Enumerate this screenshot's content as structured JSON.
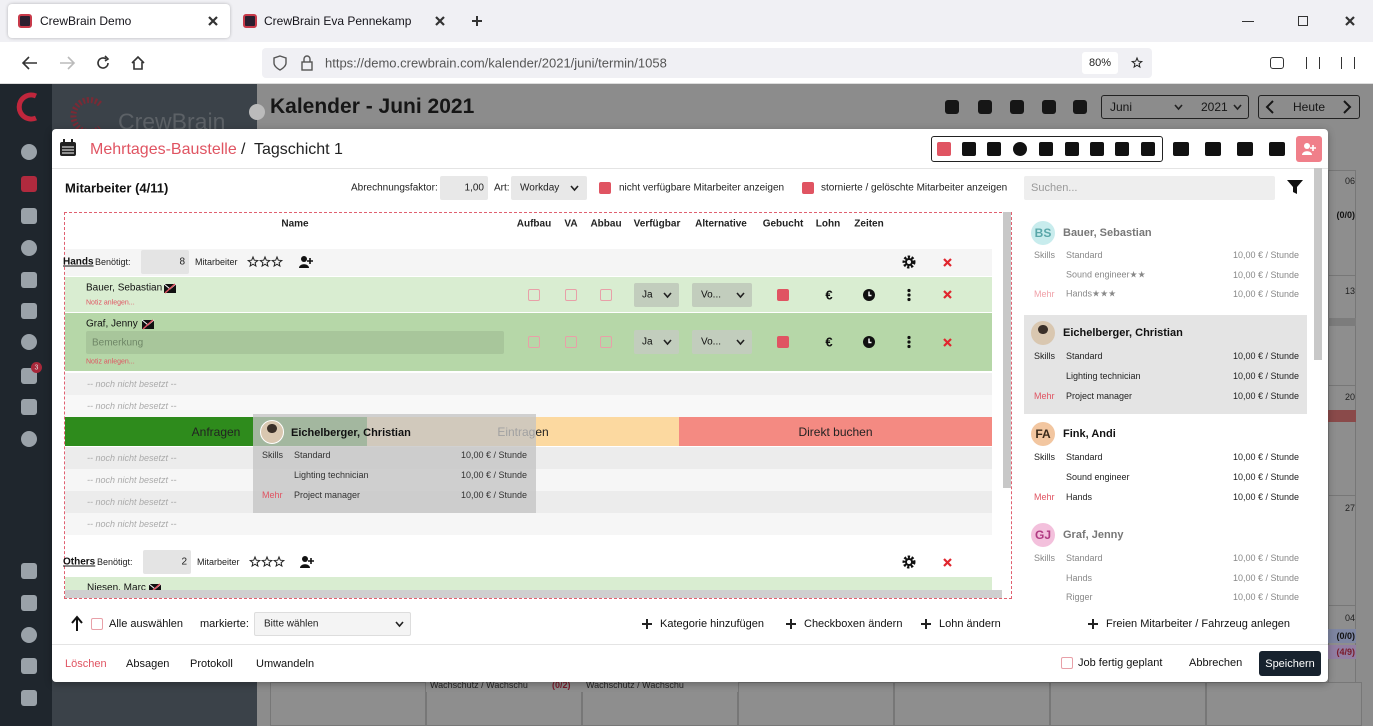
{
  "browser": {
    "tabs": [
      "CrewBrain Demo",
      "CrewBrain Eva Pennekamp"
    ],
    "url": "https://demo.crewbrain.com/kalender/2021/juni/termin/1058",
    "zoom": "80%"
  },
  "sidebar": {
    "badge": "3"
  },
  "background": {
    "logo": "CrewBrain",
    "title": "Kalender - Juni 2021",
    "month": "Juni",
    "year": "2021",
    "today": "Heute",
    "days": [
      "06",
      "13",
      "20",
      "27",
      "04"
    ],
    "counts": [
      "(0/0)",
      "(0/0)",
      "(4/9)"
    ],
    "events": [
      {
        "name": "Wachschutz / Wachschu",
        "count": "(0/2)"
      },
      {
        "name": "Wachschutz / Wachschu"
      }
    ]
  },
  "modal": {
    "breadcrumb": {
      "parent": "Mehrtages-Baustelle",
      "separator": "/",
      "current": "Tagschicht 1"
    },
    "employees": "Mitarbeiter (4/11)",
    "factor": {
      "label": "Abrechnungsfaktor:",
      "value": "1,00"
    },
    "art": {
      "label": "Art:",
      "value": "Workday"
    },
    "filters": [
      "nicht verfügbare Mitarbeiter anzeigen",
      "stornierte / gelöschte Mitarbeiter anzeigen"
    ],
    "search": "Suchen...",
    "columns": [
      "Name",
      "Aufbau",
      "VA",
      "Abbau",
      "Verfügbar",
      "Alternative",
      "Gebucht",
      "Lohn",
      "Zeiten"
    ],
    "needed_label": "Benötigt:",
    "staff_label": "Mitarbeiter",
    "note_label": "Notiz anlegen...",
    "remark_placeholder": "Bemerkung",
    "empty_label": "-- noch nicht besetzt --",
    "categories": [
      {
        "name": "Hands",
        "needed": "8",
        "rows": [
          {
            "name": "Bauer, Sebastian",
            "available": "Ja",
            "alternative": "Vo...",
            "wage": "€"
          },
          {
            "name": "Graf, Jenny",
            "available": "Ja",
            "alternative": "Vo...",
            "wage": "€"
          }
        ]
      },
      {
        "name": "Others",
        "needed": "2",
        "rows": [
          {
            "name": "Niesen, Marc"
          }
        ]
      }
    ],
    "drop_zones": [
      "Anfragen",
      "Eintragen",
      "Direkt buchen"
    ],
    "skills_label": "Skills",
    "more_label": "Mehr",
    "staff": [
      {
        "initials": "BS",
        "name": "Bauer, Sebastian",
        "skills": [
          [
            "Standard",
            "10,00 € / Stunde"
          ],
          [
            "Sound engineer★★",
            "10,00 € / Stunde"
          ]
        ],
        "more": [
          [
            "Hands★★★",
            "10,00 € / Stunde"
          ]
        ]
      },
      {
        "name": "Eichelberger, Christian",
        "skills": [
          [
            "Standard",
            "10,00 € / Stunde"
          ],
          [
            "Lighting technician",
            "10,00 € / Stunde"
          ]
        ],
        "more": [
          [
            "Project manager",
            "10,00 € / Stunde"
          ]
        ]
      },
      {
        "initials": "FA",
        "name": "Fink, Andi",
        "skills": [
          [
            "Standard",
            "10,00 € / Stunde"
          ],
          [
            "Sound engineer",
            "10,00 € / Stunde"
          ]
        ],
        "more": [
          [
            "Hands",
            "10,00 € / Stunde"
          ]
        ]
      },
      {
        "initials": "GJ",
        "name": "Graf, Jenny",
        "skills": [
          [
            "Standard",
            "10,00 € / Stunde"
          ],
          [
            "Hands",
            "10,00 € / Stunde"
          ],
          [
            "Rigger",
            "10,00 € / Stunde"
          ]
        ],
        "more": []
      }
    ],
    "footer": {
      "select_all": "Alle auswählen",
      "marked_label": "markierte:",
      "marked": "Bitte wählen",
      "actions": [
        "Kategorie hinzufügen",
        "Checkboxen ändern",
        "Lohn ändern",
        "Freien Mitarbeiter / Fahrzeug anlegen"
      ]
    },
    "bottom": {
      "left": [
        "Löschen",
        "Absagen",
        "Protokoll",
        "Umwandeln"
      ],
      "done": "Job fertig geplant",
      "cancel": "Abbrechen",
      "save": "Speichern"
    }
  }
}
